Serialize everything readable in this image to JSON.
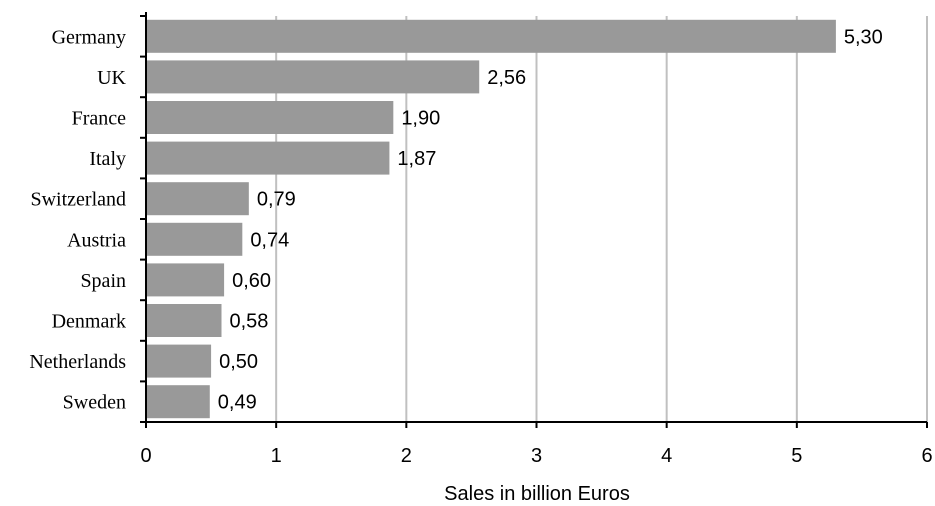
{
  "chart_data": {
    "type": "bar",
    "orientation": "horizontal",
    "categories": [
      "Germany",
      "UK",
      "France",
      "Italy",
      "Switzerland",
      "Austria",
      "Spain",
      "Denmark",
      "Netherlands",
      "Sweden"
    ],
    "values": [
      5.3,
      2.56,
      1.9,
      1.87,
      0.79,
      0.74,
      0.6,
      0.58,
      0.5,
      0.49
    ],
    "value_labels": [
      "5,30",
      "2,56",
      "1,90",
      "1,87",
      "0,79",
      "0,74",
      "0,60",
      "0,58",
      "0,50",
      "0,49"
    ],
    "xticks": [
      0,
      1,
      2,
      3,
      4,
      5,
      6
    ],
    "xlim": [
      0,
      6
    ],
    "title": "",
    "xlabel": "Sales in billion Euros",
    "ylabel": "",
    "grid": "vertical",
    "legend": "none",
    "colors": {
      "bar": "#999999",
      "grid": "#c0c0c0",
      "axis": "#000000"
    }
  }
}
